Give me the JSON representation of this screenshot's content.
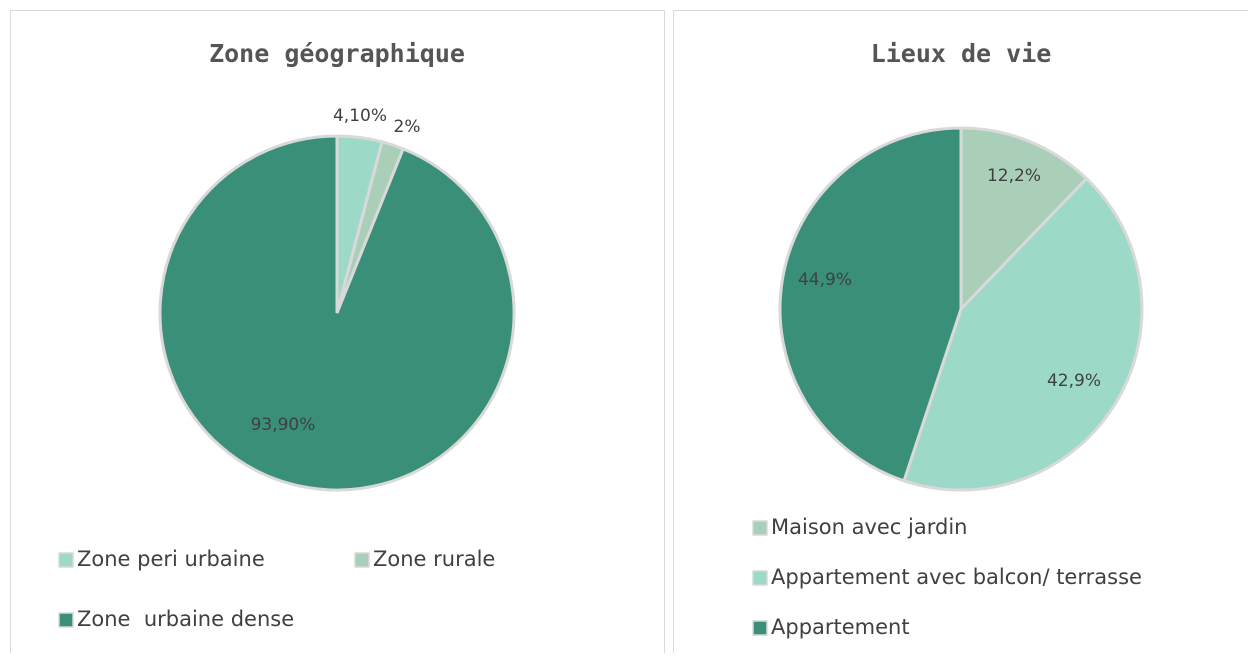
{
  "chart_data": [
    {
      "type": "pie",
      "title": "Zone géographique",
      "categories": [
        "Zone peri urbaine",
        "Zone rurale",
        "Zone  urbaine dense"
      ],
      "values": [
        4.1,
        2,
        93.9
      ],
      "value_labels": [
        "4,10%",
        "2%",
        "93,90%"
      ],
      "colors": [
        "#9cd9c8",
        "#a9cfb8",
        "#3a8f78"
      ]
    },
    {
      "type": "pie",
      "title": "Lieux de vie",
      "categories": [
        "Maison avec jardin",
        "Appartement avec balcon/ terrasse",
        "Appartement"
      ],
      "values": [
        12.2,
        42.9,
        44.9
      ],
      "value_labels": [
        "12,2%",
        "42,9%",
        "44,9%"
      ],
      "colors": [
        "#a9cfb8",
        "#9cd9c8",
        "#3a8f78"
      ]
    }
  ]
}
